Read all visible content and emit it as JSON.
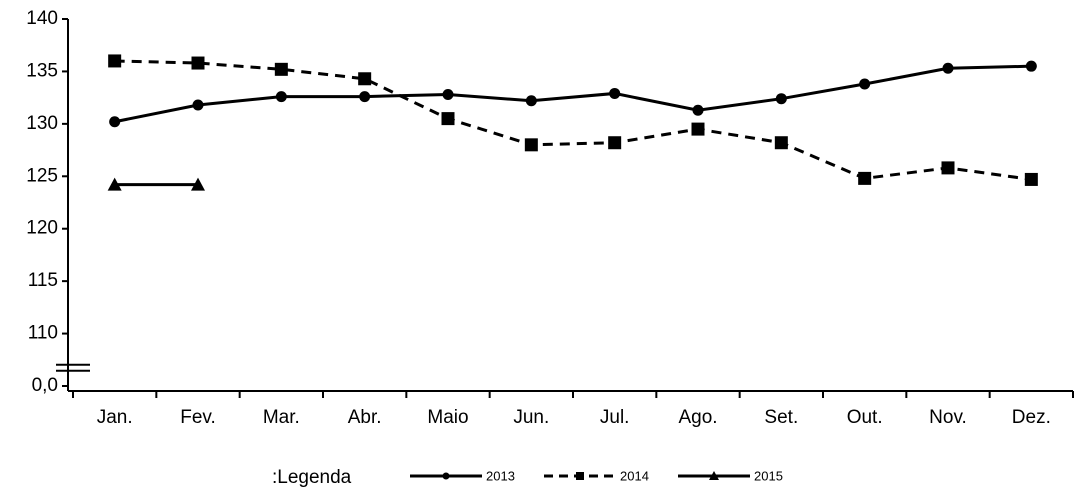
{
  "chart_data": {
    "type": "line",
    "categories": [
      "Jan.",
      "Fev.",
      "Mar.",
      "Abr.",
      "Maio",
      "Jun.",
      "Jul.",
      "Ago.",
      "Set.",
      "Out.",
      "Nov.",
      "Dez."
    ],
    "series": [
      {
        "name": "2013",
        "color": "#000000",
        "marker": "circle",
        "dash": "solid",
        "values": [
          130.2,
          131.8,
          132.6,
          132.6,
          132.8,
          132.2,
          132.9,
          131.3,
          132.4,
          133.8,
          135.3,
          135.5
        ]
      },
      {
        "name": "2014",
        "color": "#000000",
        "marker": "square",
        "dash": "dashed",
        "values": [
          136.0,
          135.8,
          135.2,
          134.3,
          130.5,
          128.0,
          128.2,
          129.5,
          128.2,
          124.8,
          125.8,
          124.7
        ]
      },
      {
        "name": "2015",
        "color": "#000000",
        "marker": "triangle",
        "dash": "solid",
        "values": [
          124.2,
          124.2,
          null,
          null,
          null,
          null,
          null,
          null,
          null,
          null,
          null,
          null
        ]
      }
    ],
    "ylim": [
      0,
      140
    ],
    "y_break": [
      0,
      105
    ],
    "yticks": [
      {
        "value": 0,
        "label": "0,0"
      },
      110,
      115,
      120,
      125,
      130,
      135,
      140
    ],
    "legend_title": ":Legenda",
    "legend_position": "bottom-left"
  }
}
